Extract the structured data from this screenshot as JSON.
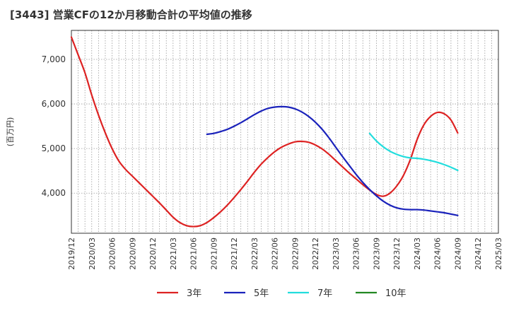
{
  "chart_data": {
    "type": "line",
    "title": "[3443]  営業CFの12か月移動合計の平均値の推移",
    "xlabel": "",
    "ylabel": "(百万円)",
    "ylim": [
      3100,
      7650
    ],
    "yticks": [
      4000,
      5000,
      6000,
      7000
    ],
    "ytick_labels": [
      "4,000",
      "5,000",
      "6,000",
      "7,000"
    ],
    "grid": true,
    "legend_position": "bottom",
    "x_categories": [
      "2019/12",
      "2020/03",
      "2020/06",
      "2020/09",
      "2020/12",
      "2021/03",
      "2021/06",
      "2021/09",
      "2021/12",
      "2022/03",
      "2022/06",
      "2022/09",
      "2022/12",
      "2023/03",
      "2023/06",
      "2023/09",
      "2023/12",
      "2024/03",
      "2024/06",
      "2024/09",
      "2024/12",
      "2025/03"
    ],
    "series": [
      {
        "name": "3年",
        "color": "#dd2222",
        "points": [
          [
            "2019/12",
            7500
          ],
          [
            "2020/01",
            7100
          ],
          [
            "2020/02",
            6700
          ],
          [
            "2020/03",
            6200
          ],
          [
            "2020/04",
            5750
          ],
          [
            "2020/05",
            5350
          ],
          [
            "2020/06",
            5000
          ],
          [
            "2020/07",
            4720
          ],
          [
            "2020/08",
            4530
          ],
          [
            "2020/09",
            4380
          ],
          [
            "2020/10",
            4230
          ],
          [
            "2020/11",
            4080
          ],
          [
            "2020/12",
            3930
          ],
          [
            "2021/01",
            3780
          ],
          [
            "2021/02",
            3620
          ],
          [
            "2021/03",
            3460
          ],
          [
            "2021/04",
            3340
          ],
          [
            "2021/05",
            3270
          ],
          [
            "2021/06",
            3250
          ],
          [
            "2021/07",
            3270
          ],
          [
            "2021/08",
            3340
          ],
          [
            "2021/09",
            3450
          ],
          [
            "2021/10",
            3580
          ],
          [
            "2021/11",
            3730
          ],
          [
            "2021/12",
            3900
          ],
          [
            "2022/01",
            4080
          ],
          [
            "2022/02",
            4270
          ],
          [
            "2022/03",
            4470
          ],
          [
            "2022/04",
            4650
          ],
          [
            "2022/05",
            4800
          ],
          [
            "2022/06",
            4930
          ],
          [
            "2022/07",
            5030
          ],
          [
            "2022/08",
            5100
          ],
          [
            "2022/09",
            5150
          ],
          [
            "2022/10",
            5160
          ],
          [
            "2022/11",
            5140
          ],
          [
            "2022/12",
            5080
          ],
          [
            "2023/01",
            4990
          ],
          [
            "2023/02",
            4870
          ],
          [
            "2023/03",
            4730
          ],
          [
            "2023/04",
            4590
          ],
          [
            "2023/05",
            4450
          ],
          [
            "2023/06",
            4320
          ],
          [
            "2023/07",
            4190
          ],
          [
            "2023/08",
            4070
          ],
          [
            "2023/09",
            3970
          ],
          [
            "2023/10",
            3930
          ],
          [
            "2023/11",
            4000
          ],
          [
            "2023/12",
            4160
          ],
          [
            "2024/01",
            4400
          ],
          [
            "2024/02",
            4750
          ],
          [
            "2024/03",
            5200
          ],
          [
            "2024/04",
            5530
          ],
          [
            "2024/05",
            5720
          ],
          [
            "2024/06",
            5810
          ],
          [
            "2024/07",
            5780
          ],
          [
            "2024/08",
            5640
          ],
          [
            "2024/09",
            5350
          ]
        ]
      },
      {
        "name": "5年",
        "color": "#1a22bb",
        "points": [
          [
            "2021/08",
            5320
          ],
          [
            "2021/09",
            5340
          ],
          [
            "2021/10",
            5380
          ],
          [
            "2021/11",
            5430
          ],
          [
            "2021/12",
            5500
          ],
          [
            "2022/01",
            5580
          ],
          [
            "2022/02",
            5670
          ],
          [
            "2022/03",
            5760
          ],
          [
            "2022/04",
            5840
          ],
          [
            "2022/05",
            5900
          ],
          [
            "2022/06",
            5930
          ],
          [
            "2022/07",
            5940
          ],
          [
            "2022/08",
            5930
          ],
          [
            "2022/09",
            5890
          ],
          [
            "2022/10",
            5820
          ],
          [
            "2022/11",
            5720
          ],
          [
            "2022/12",
            5590
          ],
          [
            "2023/01",
            5430
          ],
          [
            "2023/02",
            5240
          ],
          [
            "2023/03",
            5030
          ],
          [
            "2023/04",
            4820
          ],
          [
            "2023/05",
            4620
          ],
          [
            "2023/06",
            4420
          ],
          [
            "2023/07",
            4240
          ],
          [
            "2023/08",
            4080
          ],
          [
            "2023/09",
            3940
          ],
          [
            "2023/10",
            3820
          ],
          [
            "2023/11",
            3730
          ],
          [
            "2023/12",
            3670
          ],
          [
            "2024/01",
            3640
          ],
          [
            "2024/02",
            3630
          ],
          [
            "2024/03",
            3630
          ],
          [
            "2024/04",
            3620
          ],
          [
            "2024/05",
            3600
          ],
          [
            "2024/06",
            3580
          ],
          [
            "2024/07",
            3560
          ],
          [
            "2024/08",
            3530
          ],
          [
            "2024/09",
            3500
          ]
        ]
      },
      {
        "name": "7年",
        "color": "#22dddd",
        "points": [
          [
            "2023/08",
            5340
          ],
          [
            "2023/09",
            5170
          ],
          [
            "2023/10",
            5040
          ],
          [
            "2023/11",
            4940
          ],
          [
            "2023/12",
            4870
          ],
          [
            "2024/01",
            4820
          ],
          [
            "2024/02",
            4790
          ],
          [
            "2024/03",
            4780
          ],
          [
            "2024/04",
            4760
          ],
          [
            "2024/05",
            4730
          ],
          [
            "2024/06",
            4690
          ],
          [
            "2024/07",
            4640
          ],
          [
            "2024/08",
            4580
          ],
          [
            "2024/09",
            4510
          ]
        ]
      },
      {
        "name": "10年",
        "color": "#228822",
        "points": []
      }
    ]
  }
}
